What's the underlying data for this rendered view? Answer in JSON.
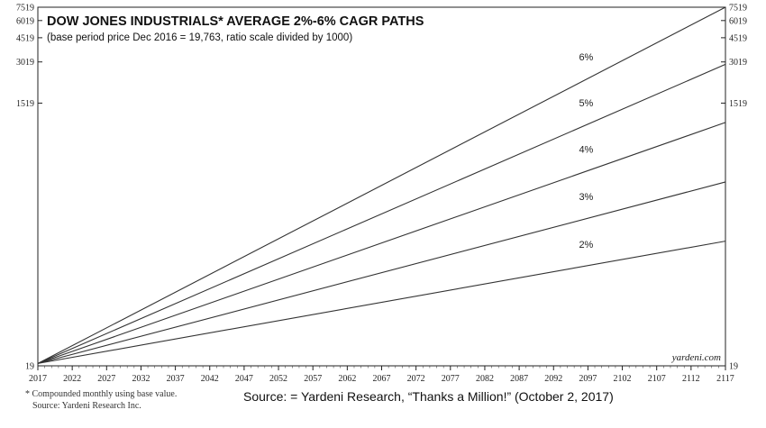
{
  "chart_data": {
    "type": "line",
    "title": "DOW JONES INDUSTRIALS* AVERAGE 2%-6% CAGR PATHS",
    "subtitle": "(base period price Dec 2016 = 19,763, ratio scale divided by 1000)",
    "xlim": [
      2017,
      2117
    ],
    "y_scale": "log",
    "ylim": [
      19,
      7519
    ],
    "y_ticks": [
      19,
      1519,
      3019,
      4519,
      6019,
      7519
    ],
    "x_ticks": [
      2017,
      2022,
      2027,
      2032,
      2037,
      2042,
      2047,
      2052,
      2057,
      2062,
      2067,
      2072,
      2077,
      2082,
      2087,
      2092,
      2097,
      2102,
      2107,
      2112,
      2117
    ],
    "grid": false,
    "series": [
      {
        "name": "6%",
        "label_x": 2097,
        "x": [
          2017,
          2117
        ],
        "y": [
          19.763,
          7519
        ]
      },
      {
        "name": "5%",
        "label_x": 2097,
        "x": [
          2017,
          2117
        ],
        "y": [
          19.763,
          2900
        ]
      },
      {
        "name": "4%",
        "label_x": 2097,
        "x": [
          2017,
          2117
        ],
        "y": [
          19.763,
          1100
        ]
      },
      {
        "name": "3%",
        "label_x": 2097,
        "x": [
          2017,
          2117
        ],
        "y": [
          19.763,
          408
        ]
      },
      {
        "name": "2%",
        "label_x": 2097,
        "x": [
          2017,
          2117
        ],
        "y": [
          19.763,
          152
        ]
      }
    ],
    "watermark": "yardeni.com"
  },
  "footnotes": {
    "line1": "*  Compounded monthly using base value.",
    "line2": "Source: Yardeni Research Inc."
  },
  "source_caption": "Source: = Yardeni Research, “Thanks a Million!” (October 2, 2017)"
}
